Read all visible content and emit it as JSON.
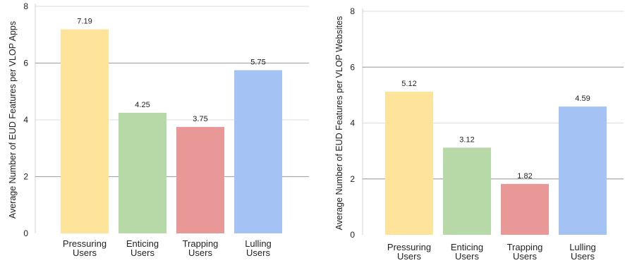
{
  "chart_data": [
    {
      "type": "bar",
      "categories": [
        "Pressuring\nUsers",
        "Enticing\nUsers",
        "Trapping\nUsers",
        "Lulling\nUsers"
      ],
      "values": [
        7.19,
        4.25,
        3.75,
        5.75
      ],
      "value_labels": [
        "7.19",
        "4.25",
        "3.75",
        "5.75"
      ],
      "colors": [
        "#fde49a",
        "#b6d9a7",
        "#e99898",
        "#a4c2f4"
      ],
      "title": "",
      "xlabel": "",
      "ylabel": "Average Number of EUD Features per VLOP Apps",
      "ylim": [
        0,
        8
      ],
      "yticks": [
        "0",
        "2",
        "4",
        "6",
        "8"
      ],
      "grid": true
    },
    {
      "type": "bar",
      "categories": [
        "Pressuring\nUsers",
        "Enticing\nUsers",
        "Trapping\nUsers",
        "Lulling\nUsers"
      ],
      "values": [
        5.12,
        3.12,
        1.82,
        4.59
      ],
      "value_labels": [
        "5.12",
        "3.12",
        "1.82",
        "4.59"
      ],
      "colors": [
        "#fde49a",
        "#b6d9a7",
        "#e99898",
        "#a4c2f4"
      ],
      "title": "",
      "xlabel": "",
      "ylabel": "Average Number of EUD Features per VLOP Websites",
      "ylim": [
        0,
        8
      ],
      "yticks": [
        "0",
        "2",
        "4",
        "6",
        "8"
      ],
      "grid": true
    }
  ]
}
